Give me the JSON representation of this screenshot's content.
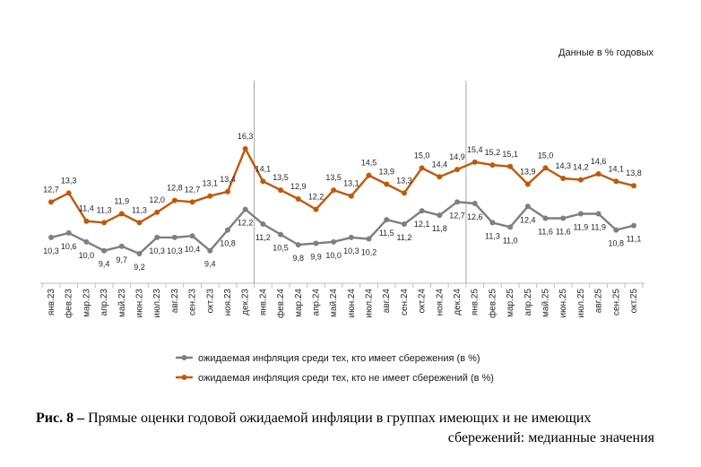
{
  "units_note": "Данные в % годовых",
  "caption": {
    "label": "Рис. 8 –",
    "line1": "Прямые оценки годовой ожидаемой инфляции в группах имеющих и не имеющих",
    "line2": "сбережений: медианные значения"
  },
  "chart_data": {
    "type": "line",
    "title": "",
    "xlabel": "",
    "ylabel": "",
    "ylim": [
      6,
      18
    ],
    "categories": [
      "янв.23",
      "фев.23",
      "мар.23",
      "апр.23",
      "май.23",
      "июн.23",
      "июл.23",
      "авг.23",
      "сен.23",
      "окт.23",
      "ноя.23",
      "дек.23",
      "янв.24",
      "фев.24",
      "мар.24",
      "апр.24",
      "май.24",
      "июн.24",
      "июл.24",
      "авг.24",
      "сен.24",
      "окт.24",
      "ноя.24",
      "дек.24",
      "янв.25",
      "фев.25",
      "мар.25",
      "апр.25",
      "май.25",
      "июн.25",
      "июл.25",
      "авг.25",
      "сен.25",
      "окт.25"
    ],
    "year_separators_after": [
      "дек.23",
      "дек.24"
    ],
    "series": [
      {
        "name": "ожидаемая инфляция среди тех, кто имеет сбережения (в %)",
        "color": "#7f7f7f",
        "values": [
          10.3,
          10.6,
          10.0,
          9.4,
          9.7,
          9.2,
          10.3,
          10.3,
          10.4,
          9.4,
          10.8,
          12.2,
          11.2,
          10.5,
          9.8,
          9.9,
          10.0,
          10.3,
          10.2,
          11.5,
          11.2,
          12.1,
          11.8,
          12.7,
          12.6,
          11.3,
          11.0,
          12.4,
          11.6,
          11.6,
          11.9,
          11.9,
          10.8,
          11.1
        ],
        "labels": [
          "10,3",
          "10,6",
          "10,0",
          "9,4",
          "9,7",
          "9,2",
          "10,3",
          "10,3",
          "10,4",
          "9,4",
          "10,8",
          "12,2",
          "11,2",
          "10,5",
          "9,8",
          "9,9",
          "10,0",
          "10,3",
          "10,2",
          "11,5",
          "11,2",
          "12,1",
          "11,8",
          "12,7",
          "12,6",
          "11,3",
          "11,0",
          "12,4",
          "11,6",
          "11,6",
          "11,9",
          "11,9",
          "10,8",
          "11,1"
        ]
      },
      {
        "name": "ожидаемая инфляция среди тех, кто не имеет сбережений (в %)",
        "color": "#c0580a",
        "values": [
          12.7,
          13.3,
          11.4,
          11.3,
          11.9,
          11.3,
          12.0,
          12.8,
          12.7,
          13.1,
          13.4,
          16.3,
          14.1,
          13.5,
          12.9,
          12.2,
          13.5,
          13.1,
          14.5,
          13.9,
          13.3,
          15.0,
          14.4,
          14.9,
          15.4,
          15.2,
          15.1,
          13.9,
          15.0,
          14.3,
          14.2,
          14.6,
          14.1,
          13.8
        ],
        "labels": [
          "12,7",
          "13,3",
          "11,4",
          "11,3",
          "11,9",
          "11,3",
          "12,0",
          "12,8",
          "12,7",
          "13,1",
          "13,4",
          "16,3",
          "14,1",
          "13,5",
          "12,9",
          "12,2",
          "13,5",
          "13,1",
          "14,5",
          "13,9",
          "13,3",
          "15,0",
          "14,4",
          "14,9",
          "15,4",
          "15,2",
          "15,1",
          "13,9",
          "15,0",
          "14,3",
          "14,2",
          "14,6",
          "14,1",
          "13,8"
        ]
      }
    ],
    "legend": "bottom"
  }
}
